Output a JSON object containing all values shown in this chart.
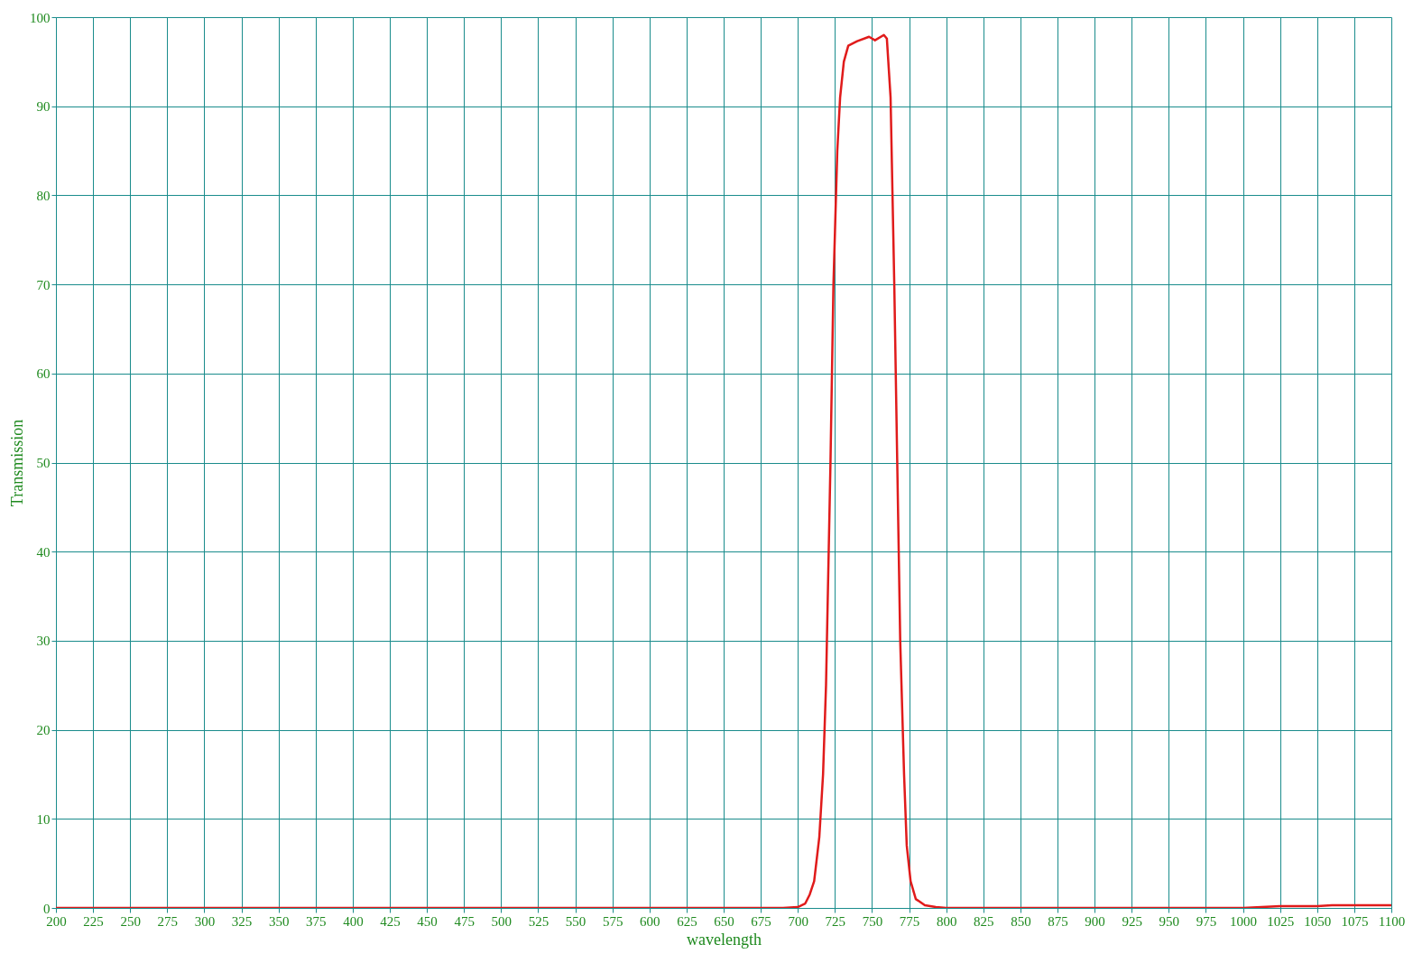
{
  "chart_data": {
    "type": "line",
    "xlabel": "wavelength",
    "ylabel": "Transmission",
    "x": [
      200,
      300,
      400,
      500,
      600,
      690,
      700,
      705,
      708,
      711,
      714.5,
      717,
      719,
      722,
      724,
      726.6,
      728.5,
      731,
      734,
      740,
      748,
      752,
      758,
      760,
      762.5,
      765,
      767,
      769,
      771.6,
      773.4,
      776,
      779.5,
      785.6,
      793,
      800,
      900,
      1000,
      1025,
      1050,
      1060,
      1100
    ],
    "series": [
      {
        "color": "#e01b1b",
        "values": [
          0,
          0,
          0,
          0,
          0,
          0,
          0.1,
          0.5,
          1.5,
          3,
          8,
          15,
          25,
          50,
          70,
          85,
          91,
          95,
          96.8,
          97.3,
          97.8,
          97.4,
          98,
          97.6,
          91,
          70,
          50,
          30,
          15,
          7,
          3,
          1,
          0.3,
          0.1,
          0,
          0,
          0,
          0.2,
          0.2,
          0.3,
          0.3
        ]
      }
    ],
    "xlim": [
      200,
      1100
    ],
    "xticks": [
      200,
      225,
      250,
      275,
      300,
      325,
      350,
      375,
      400,
      425,
      450,
      475,
      500,
      525,
      550,
      575,
      600,
      625,
      650,
      675,
      700,
      725,
      750,
      775,
      800,
      825,
      850,
      875,
      900,
      925,
      950,
      975,
      1000,
      1025,
      1050,
      1075,
      1100
    ],
    "ylim": [
      0,
      100
    ],
    "yticks": [
      0,
      10,
      20,
      30,
      40,
      50,
      60,
      70,
      80,
      90,
      100
    ],
    "grid": true,
    "marker": "none",
    "line_style": "solid",
    "legend": false
  }
}
